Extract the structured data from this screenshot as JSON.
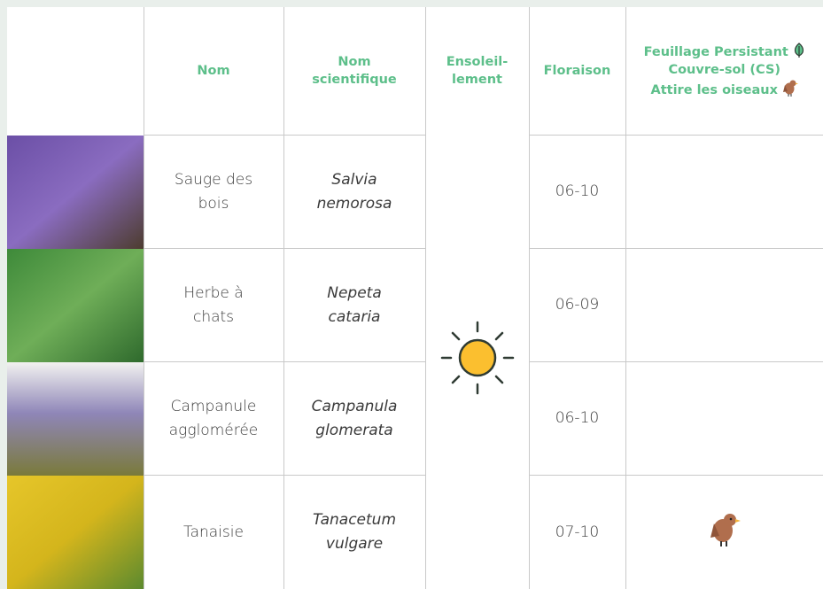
{
  "table": {
    "header": [
      "",
      "Nom",
      "Nom scientifique",
      "Ensoleil-lement",
      "Floraison",
      [
        "Feuillage Persistant",
        "Couvre-sol (CS)",
        "Attire les oiseaux"
      ]
    ],
    "rows": [
      [
        "Sauge des bois",
        "Salvia nemorosa",
        "06-10"
      ],
      [
        "Herbe à chats",
        "Nepeta cataria",
        "06-09"
      ],
      [
        "Campanule agglomérée",
        "Campanula glomerata",
        "06-10"
      ],
      [
        "Tanaisie",
        "Tanacetum vulgare",
        "07-10"
      ]
    ]
  }
}
